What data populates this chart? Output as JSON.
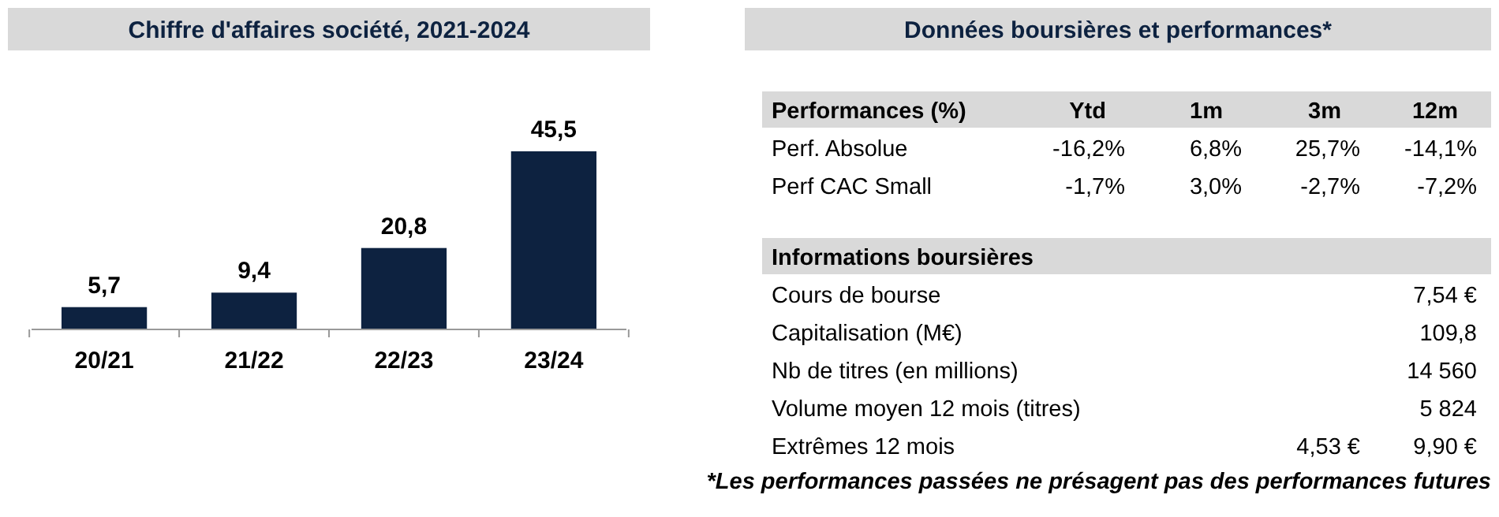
{
  "chart_data": [
    {
      "type": "bar",
      "title": "Chiffre d'affaires société, 2021-2024",
      "categories": [
        "20/21",
        "21/22",
        "22/23",
        "23/24"
      ],
      "values": [
        5.7,
        9.4,
        20.8,
        45.5
      ],
      "value_labels": [
        "5,7",
        "9,4",
        "20,8",
        "45,5"
      ],
      "color": "#0d2240"
    },
    {
      "type": "other",
      "title": "Données boursières et performances*",
      "cell_labels": [
        [
          "Performances (%)",
          "Ytd",
          "1m",
          "3m",
          "12m"
        ],
        [
          "Perf. Absolue",
          "-16,2%",
          "6,8%",
          "25,7%",
          "-14,1%"
        ],
        [
          "Perf CAC Small",
          "-1,7%",
          "3,0%",
          "-2,7%",
          "-7,2%"
        ]
      ]
    },
    {
      "type": "other",
      "cell_labels": [
        [
          "Informations boursières",
          null,
          null,
          null,
          null
        ],
        [
          "Cours de bourse",
          null,
          null,
          null,
          "7,54 €"
        ],
        [
          "Capitalisation (M€)",
          null,
          null,
          null,
          "109,8"
        ],
        [
          "Nb de titres (en millions)",
          null,
          null,
          null,
          "14 560"
        ],
        [
          "Volume moyen 12 mois (titres)",
          null,
          null,
          null,
          "5 824"
        ],
        [
          "Extrêmes 12 mois",
          null,
          null,
          "4,53 €",
          "9,90 €"
        ]
      ],
      "annotations": [
        "*Les performances passées ne présagent pas des performances futures"
      ]
    }
  ]
}
